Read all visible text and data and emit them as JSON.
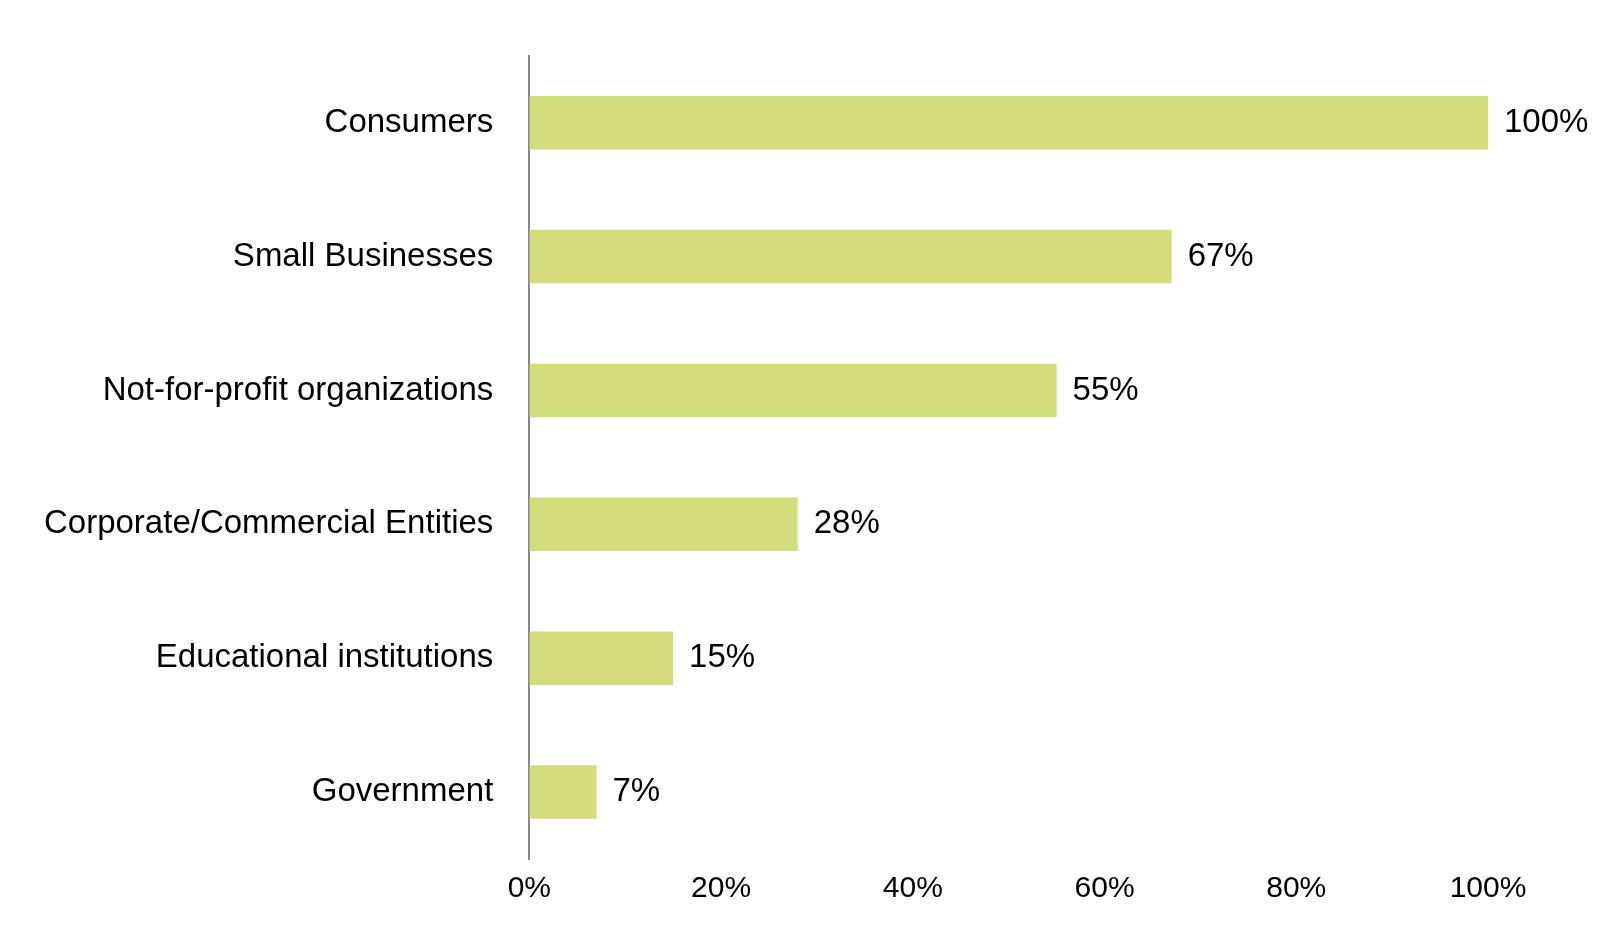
{
  "chart_data": {
    "type": "bar",
    "orientation": "horizontal",
    "categories": [
      "Consumers",
      "Small Businesses",
      "Not-for-profit organizations",
      "Corporate/Commercial Entities",
      "Educational institutions",
      "Government"
    ],
    "values": [
      100,
      67,
      55,
      28,
      15,
      7
    ],
    "value_labels": [
      "100%",
      "67%",
      "55%",
      "28%",
      "15%",
      "7%"
    ],
    "color": "#d4dc7c",
    "xlim": [
      0,
      100
    ],
    "xticks": [
      {
        "value": 0,
        "label": "0%"
      },
      {
        "value": 20,
        "label": "20%"
      },
      {
        "value": 40,
        "label": "40%"
      },
      {
        "value": 60,
        "label": "60%"
      },
      {
        "value": 80,
        "label": "80%"
      },
      {
        "value": 100,
        "label": "100%"
      }
    ],
    "grid": false,
    "legend": false
  }
}
